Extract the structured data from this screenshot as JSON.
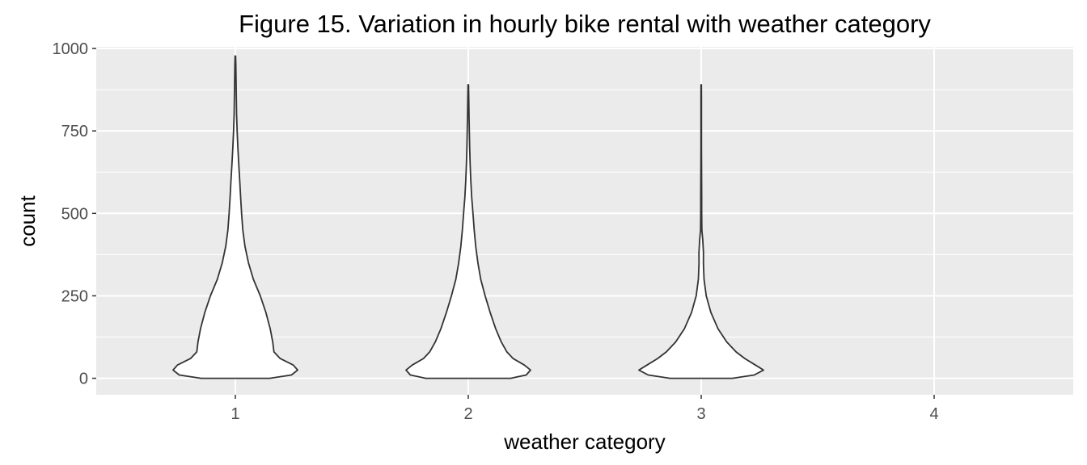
{
  "chart_data": {
    "type": "violin",
    "title": "Figure 15. Variation in hourly bike rental with weather category",
    "xlabel": "weather category",
    "ylabel": "count",
    "categories": [
      "1",
      "2",
      "3",
      "4"
    ],
    "ylim": [
      -50,
      1005
    ],
    "yticks": [
      0,
      250,
      500,
      750,
      1000
    ],
    "yticks_labels": [
      "0",
      "250",
      "500",
      "750",
      "1000"
    ],
    "grid": true,
    "legend": "none",
    "colors": {
      "panel_background": "#ebebeb",
      "grid": "#ffffff",
      "violin_fill": "#ffffff",
      "violin_outline": "#333333",
      "tick_text": "#4d4d4d",
      "tick_mark": "#333333"
    },
    "violins": [
      {
        "category": "1",
        "min": 0,
        "max": 977,
        "density": [
          [
            0,
            0.55
          ],
          [
            10,
            0.9
          ],
          [
            25,
            1.0
          ],
          [
            40,
            0.93
          ],
          [
            60,
            0.72
          ],
          [
            80,
            0.62
          ],
          [
            110,
            0.6
          ],
          [
            150,
            0.56
          ],
          [
            200,
            0.49
          ],
          [
            250,
            0.4
          ],
          [
            300,
            0.29
          ],
          [
            350,
            0.21
          ],
          [
            400,
            0.155
          ],
          [
            450,
            0.12
          ],
          [
            500,
            0.1
          ],
          [
            550,
            0.085
          ],
          [
            600,
            0.07
          ],
          [
            650,
            0.055
          ],
          [
            700,
            0.04
          ],
          [
            750,
            0.028
          ],
          [
            800,
            0.02
          ],
          [
            850,
            0.016
          ],
          [
            900,
            0.012
          ],
          [
            950,
            0.008
          ],
          [
            977,
            0.004
          ]
        ]
      },
      {
        "category": "2",
        "min": 0,
        "max": 890,
        "density": [
          [
            0,
            0.68
          ],
          [
            10,
            0.93
          ],
          [
            25,
            1.0
          ],
          [
            40,
            0.9
          ],
          [
            60,
            0.72
          ],
          [
            80,
            0.62
          ],
          [
            110,
            0.53
          ],
          [
            150,
            0.44
          ],
          [
            200,
            0.35
          ],
          [
            250,
            0.27
          ],
          [
            300,
            0.2
          ],
          [
            350,
            0.155
          ],
          [
            400,
            0.12
          ],
          [
            450,
            0.095
          ],
          [
            500,
            0.075
          ],
          [
            550,
            0.055
          ],
          [
            600,
            0.04
          ],
          [
            650,
            0.03
          ],
          [
            700,
            0.022
          ],
          [
            750,
            0.017
          ],
          [
            800,
            0.012
          ],
          [
            850,
            0.008
          ],
          [
            890,
            0.004
          ]
        ]
      },
      {
        "category": "3",
        "min": 0,
        "max": 890,
        "density": [
          [
            0,
            0.5
          ],
          [
            10,
            0.85
          ],
          [
            25,
            1.0
          ],
          [
            40,
            0.87
          ],
          [
            60,
            0.7
          ],
          [
            80,
            0.56
          ],
          [
            110,
            0.41
          ],
          [
            150,
            0.27
          ],
          [
            200,
            0.155
          ],
          [
            250,
            0.08
          ],
          [
            300,
            0.045
          ],
          [
            350,
            0.035
          ],
          [
            380,
            0.036
          ],
          [
            420,
            0.025
          ],
          [
            450,
            0.01
          ],
          [
            500,
            0.008
          ],
          [
            550,
            0.008
          ],
          [
            600,
            0.007
          ],
          [
            650,
            0.005
          ],
          [
            700,
            0.004
          ],
          [
            750,
            0.004
          ],
          [
            800,
            0.004
          ],
          [
            850,
            0.004
          ],
          [
            890,
            0.003
          ]
        ]
      }
    ]
  }
}
